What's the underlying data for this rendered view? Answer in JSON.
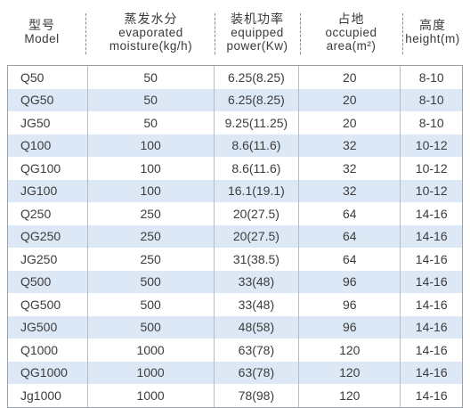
{
  "header": {
    "model": {
      "zh": "型号",
      "en": "Model"
    },
    "moisture": {
      "zh": "蒸发水分",
      "en1": "evaporated",
      "en2": "moisture(kg/h)"
    },
    "power": {
      "zh": "装机功率",
      "en1": "equipped",
      "en2": "power(Kw)"
    },
    "area": {
      "zh": "占地",
      "en1": "occupied",
      "en2": "area(m²)"
    },
    "height": {
      "zh": "高度",
      "en": "height(m)"
    }
  },
  "rows": [
    {
      "model": "Q50",
      "moisture": "50",
      "power": "6.25(8.25)",
      "area": "20",
      "height": "8-10"
    },
    {
      "model": "QG50",
      "moisture": "50",
      "power": "6.25(8.25)",
      "area": "20",
      "height": "8-10"
    },
    {
      "model": "JG50",
      "moisture": "50",
      "power": "9.25(11.25)",
      "area": "20",
      "height": "8-10"
    },
    {
      "model": "Q100",
      "moisture": "100",
      "power": "8.6(11.6)",
      "area": "32",
      "height": "10-12"
    },
    {
      "model": "QG100",
      "moisture": "100",
      "power": "8.6(11.6)",
      "area": "32",
      "height": "10-12"
    },
    {
      "model": "JG100",
      "moisture": "100",
      "power": "16.1(19.1)",
      "area": "32",
      "height": "10-12"
    },
    {
      "model": "Q250",
      "moisture": "250",
      "power": "20(27.5)",
      "area": "64",
      "height": "14-16"
    },
    {
      "model": "QG250",
      "moisture": "250",
      "power": "20(27.5)",
      "area": "64",
      "height": "14-16"
    },
    {
      "model": "JG250",
      "moisture": "250",
      "power": "31(38.5)",
      "area": "64",
      "height": "14-16"
    },
    {
      "model": "Q500",
      "moisture": "500",
      "power": "33(48)",
      "area": "96",
      "height": "14-16"
    },
    {
      "model": "QG500",
      "moisture": "500",
      "power": "33(48)",
      "area": "96",
      "height": "14-16"
    },
    {
      "model": "JG500",
      "moisture": "500",
      "power": "48(58)",
      "area": "96",
      "height": "14-16"
    },
    {
      "model": "Q1000",
      "moisture": "1000",
      "power": "63(78)",
      "area": "120",
      "height": "14-16"
    },
    {
      "model": "QG1000",
      "moisture": "1000",
      "power": "63(78)",
      "area": "120",
      "height": "14-16"
    },
    {
      "model": "Jg1000",
      "moisture": "1000",
      "power": "78(98)",
      "area": "120",
      "height": "14-16"
    }
  ],
  "colors": {
    "stripe": "#dde8f7",
    "text": "#3c3c3c",
    "border": "#b5bcc4"
  }
}
